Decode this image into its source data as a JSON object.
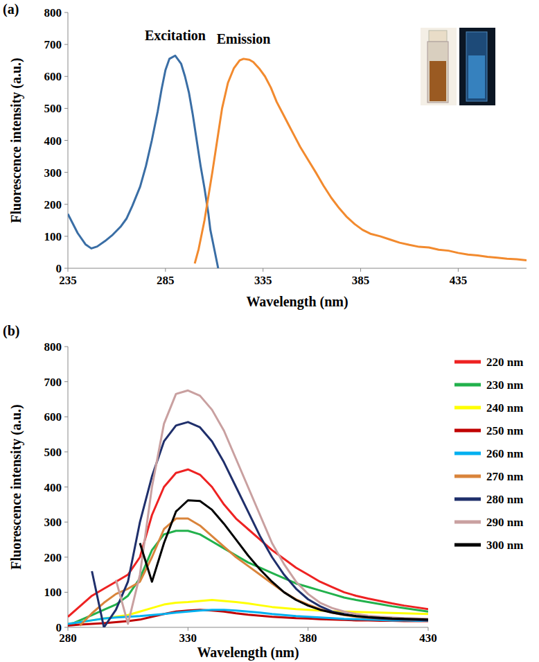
{
  "chart_data": [
    {
      "type": "line",
      "title": "(a)",
      "x_label": "Wavelength (nm)",
      "y_label": "Fluorescence intensity (a.u.)",
      "xlim": [
        235,
        470
      ],
      "xticks": [
        235,
        285,
        335,
        385,
        435
      ],
      "ylim": [
        0,
        800
      ],
      "yticks": [
        0,
        100,
        200,
        300,
        400,
        500,
        600,
        700,
        800
      ],
      "grid": false,
      "series": [
        {
          "name": "Excitation",
          "color": "#3a6ea5",
          "x": [
            235,
            240,
            244,
            247,
            250,
            254,
            258,
            262,
            265,
            268,
            272,
            275,
            278,
            281,
            283,
            285,
            287,
            290,
            293,
            295,
            297,
            299,
            301,
            303,
            305,
            307,
            308,
            310,
            312
          ],
          "values": [
            170,
            110,
            75,
            62,
            68,
            85,
            105,
            130,
            155,
            195,
            255,
            320,
            400,
            490,
            560,
            620,
            655,
            665,
            640,
            600,
            550,
            480,
            400,
            320,
            250,
            170,
            120,
            60,
            0
          ]
        },
        {
          "name": "Emission",
          "color": "#f28a2e",
          "x": [
            300,
            302,
            305,
            309,
            312,
            314,
            317,
            320,
            323,
            325,
            328,
            330,
            333,
            336,
            339,
            342,
            345,
            348,
            351,
            354,
            358,
            362,
            366,
            370,
            374,
            378,
            382,
            386,
            390,
            395,
            400,
            405,
            410,
            415,
            420,
            425,
            430,
            435,
            440,
            445,
            450,
            455,
            460,
            465,
            470
          ],
          "values": [
            15,
            60,
            150,
            300,
            420,
            500,
            580,
            625,
            650,
            655,
            652,
            645,
            625,
            600,
            565,
            520,
            485,
            450,
            415,
            380,
            340,
            300,
            258,
            220,
            188,
            160,
            138,
            120,
            108,
            100,
            90,
            80,
            73,
            67,
            65,
            58,
            55,
            48,
            43,
            40,
            36,
            33,
            30,
            28,
            25
          ]
        }
      ]
    },
    {
      "type": "line",
      "title": "(b)",
      "x_label": "Wavelength (nm)",
      "y_label": "Fluorescence intensity (a.u.)",
      "xlim": [
        280,
        430
      ],
      "xticks": [
        280,
        330,
        380,
        430
      ],
      "ylim": [
        0,
        800
      ],
      "yticks": [
        0,
        100,
        200,
        300,
        400,
        500,
        600,
        700,
        800
      ],
      "grid": false,
      "legend": "right",
      "x": [
        280,
        285,
        290,
        295,
        300,
        305,
        310,
        315,
        320,
        325,
        330,
        335,
        340,
        345,
        350,
        355,
        360,
        365,
        370,
        375,
        380,
        385,
        390,
        395,
        400,
        405,
        410,
        415,
        420,
        425,
        430
      ],
      "series": [
        {
          "name": "220 nm",
          "color": "#ee2222",
          "values": [
            30,
            60,
            90,
            110,
            130,
            150,
            200,
            320,
            400,
            440,
            450,
            435,
            400,
            350,
            310,
            280,
            250,
            220,
            195,
            170,
            150,
            130,
            115,
            100,
            90,
            82,
            75,
            68,
            62,
            57,
            52
          ]
        },
        {
          "name": "230 nm",
          "color": "#22b14c",
          "values": [
            5,
            20,
            35,
            50,
            65,
            90,
            140,
            220,
            265,
            275,
            275,
            265,
            245,
            225,
            205,
            185,
            170,
            155,
            140,
            125,
            115,
            105,
            95,
            85,
            78,
            72,
            66,
            60,
            55,
            50,
            45
          ]
        },
        {
          "name": "240 nm",
          "color": "#ffff00",
          "values": [
            10,
            15,
            20,
            25,
            30,
            35,
            45,
            55,
            65,
            70,
            72,
            75,
            78,
            75,
            72,
            68,
            63,
            58,
            55,
            52,
            50,
            48,
            46,
            45,
            44,
            43,
            42,
            41,
            40,
            39,
            38
          ]
        },
        {
          "name": "250 nm",
          "color": "#c00000",
          "values": [
            5,
            8,
            10,
            12,
            15,
            18,
            22,
            30,
            38,
            45,
            48,
            50,
            48,
            45,
            40,
            36,
            33,
            30,
            28,
            26,
            25,
            23,
            22,
            21,
            20,
            20,
            19,
            19,
            18,
            18,
            18
          ]
        },
        {
          "name": "260 nm",
          "color": "#00b0f0",
          "values": [
            10,
            15,
            20,
            25,
            28,
            30,
            32,
            35,
            38,
            42,
            45,
            48,
            50,
            50,
            48,
            45,
            42,
            38,
            35,
            32,
            30,
            28,
            26,
            24,
            23,
            22,
            21,
            20,
            20,
            19,
            19
          ]
        },
        {
          "name": "270 nm",
          "color": "#d9843b",
          "values": [
            null,
            5,
            40,
            70,
            95,
            110,
            130,
            200,
            280,
            310,
            310,
            290,
            260,
            230,
            200,
            175,
            150,
            125,
            100,
            80,
            65,
            52,
            42,
            35,
            30,
            27,
            25,
            23,
            22,
            21,
            20
          ]
        },
        {
          "name": "280 nm",
          "color": "#1f2f6b",
          "values": [
            null,
            null,
            160,
            0,
            50,
            130,
            300,
            430,
            530,
            575,
            585,
            570,
            530,
            470,
            400,
            330,
            260,
            200,
            150,
            110,
            80,
            60,
            45,
            38,
            32,
            28,
            25,
            23,
            22,
            21,
            20
          ]
        },
        {
          "name": "290 nm",
          "color": "#c9a0a0",
          "values": [
            null,
            null,
            null,
            null,
            135,
            10,
            150,
            400,
            580,
            665,
            675,
            660,
            620,
            560,
            480,
            400,
            320,
            240,
            180,
            130,
            95,
            70,
            55,
            45,
            38,
            33,
            30,
            28,
            26,
            25,
            24
          ]
        },
        {
          "name": "300 nm",
          "color": "#000000",
          "values": [
            null,
            null,
            null,
            null,
            null,
            null,
            240,
            130,
            240,
            330,
            362,
            360,
            335,
            295,
            250,
            205,
            165,
            130,
            100,
            78,
            62,
            50,
            42,
            36,
            32,
            29,
            27,
            25,
            24,
            23,
            22
          ]
        }
      ]
    }
  ]
}
